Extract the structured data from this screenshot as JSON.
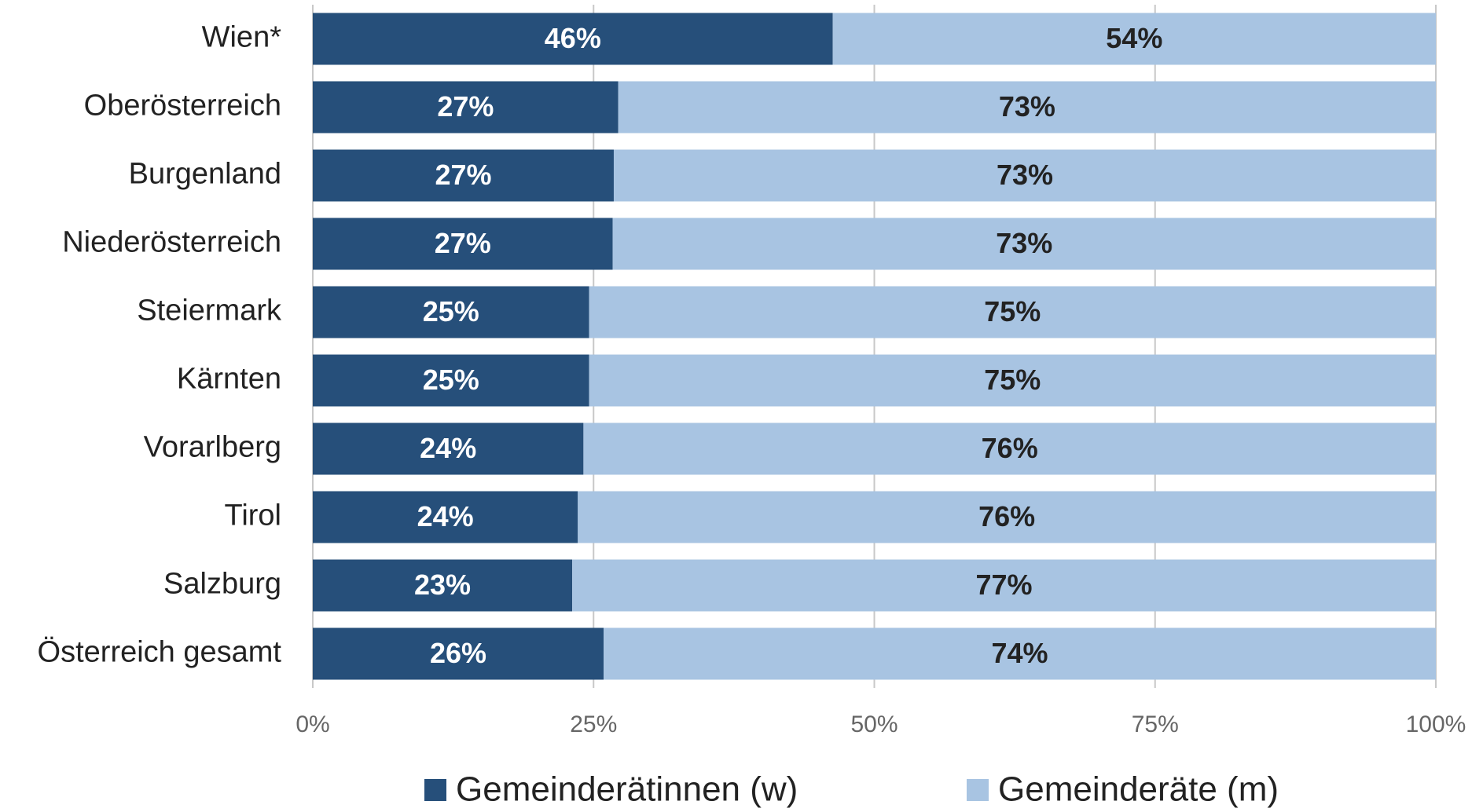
{
  "chart_data": {
    "type": "bar",
    "orientation": "horizontal",
    "stacked": true,
    "categories": [
      "Wien*",
      "Oberösterreich",
      "Burgenland",
      "Niederösterreich",
      "Steiermark",
      "Kärnten",
      "Vorarlberg",
      "Tirol",
      "Salzburg",
      "Österreich gesamt"
    ],
    "series": [
      {
        "name": "Gemeinderätinnen (w)",
        "color": "#264f7a",
        "label_color": "#ffffff",
        "values": [
          46.3,
          27.2,
          26.8,
          26.7,
          24.6,
          24.6,
          24.1,
          23.6,
          23.1,
          25.9
        ],
        "value_labels": [
          "46%",
          "27%",
          "27%",
          "27%",
          "25%",
          "25%",
          "24%",
          "24%",
          "23%",
          "26%"
        ]
      },
      {
        "name": "Gemeinderäte (m)",
        "color": "#a8c4e2",
        "label_color": "#222222",
        "values": [
          53.7,
          72.8,
          73.2,
          73.3,
          75.4,
          75.4,
          75.9,
          76.4,
          76.9,
          74.1
        ],
        "value_labels": [
          "54%",
          "73%",
          "73%",
          "73%",
          "75%",
          "75%",
          "76%",
          "76%",
          "77%",
          "74%"
        ]
      }
    ],
    "xlim": [
      0,
      100
    ],
    "xticks": [
      {
        "value": 0,
        "label": "0%"
      },
      {
        "value": 25,
        "label": "25%"
      },
      {
        "value": 50,
        "label": "50%"
      },
      {
        "value": 75,
        "label": "75%"
      },
      {
        "value": 100,
        "label": "100%"
      }
    ],
    "grid": true,
    "legend": "bottom"
  }
}
